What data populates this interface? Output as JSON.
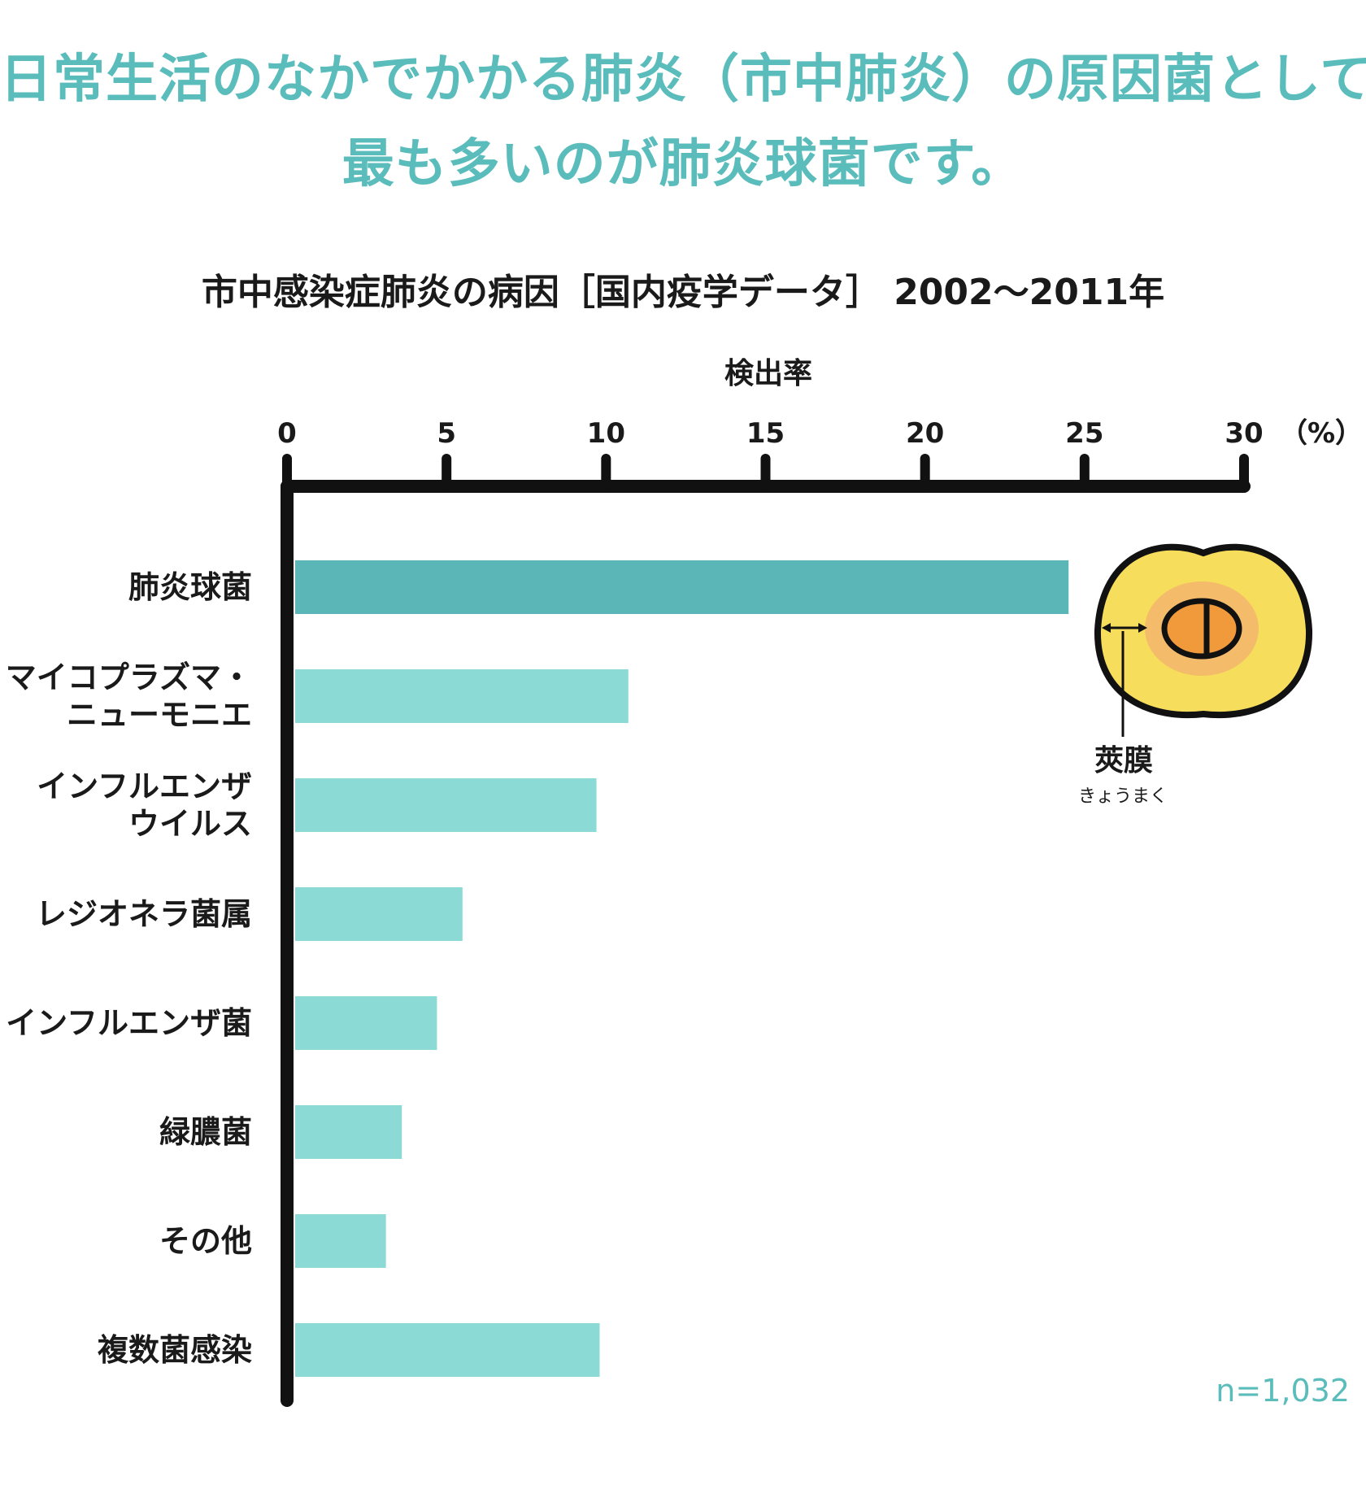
{
  "headline": {
    "line1": "日常生活のなかでかかる肺炎（市中肺炎）の原因菌として",
    "line2": "最も多いのが肺炎球菌です。"
  },
  "colors": {
    "headline": "#5bbcbc",
    "bar_highlight": "#5ab6b7",
    "bar_default": "#8cdad5",
    "axis": "#111111",
    "organ_outer": "#f6dd5c",
    "organ_ring": "#f4bb6a",
    "organ_core": "#f09a3c"
  },
  "chart_data": {
    "type": "bar",
    "orientation": "horizontal",
    "title": "市中感染症肺炎の病因［国内疫学データ］ 2002〜2011年",
    "xlabel": "検出率",
    "x_unit": "（%）",
    "xlim": [
      0,
      30
    ],
    "x_ticks": [
      "0",
      "5",
      "10",
      "15",
      "20",
      "25",
      "30"
    ],
    "categories": [
      "肺炎球菌",
      "マイコプラズマ・\nニューモニエ",
      "インフルエンザ\nウイルス",
      "レジオネラ菌属",
      "インフルエンザ菌",
      "緑膿菌",
      "その他",
      "複数菌感染"
    ],
    "values": [
      24.5,
      10.7,
      9.7,
      5.5,
      4.7,
      3.6,
      3.1,
      9.8
    ],
    "highlight_index": 0,
    "grid": false,
    "legend": "none",
    "note": "n=1,032",
    "annotation": {
      "label": "莢膜",
      "reading": "きょうまく",
      "icon": "pneumococcus-capsule-diagram"
    }
  }
}
